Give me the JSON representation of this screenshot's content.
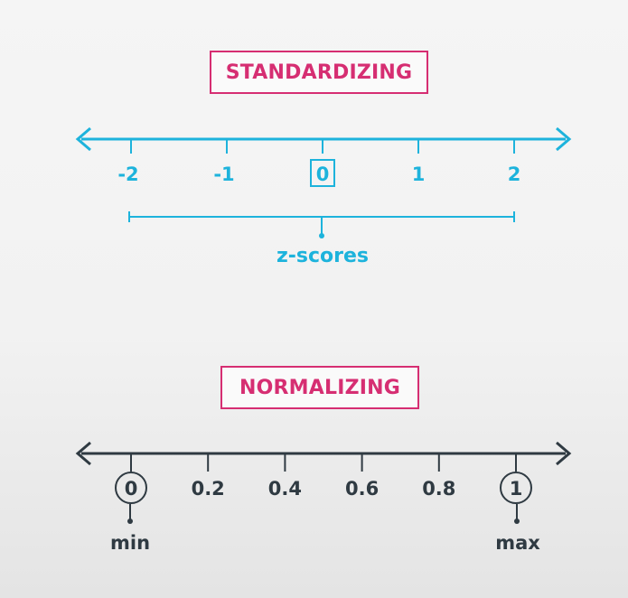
{
  "standardizing": {
    "title": "STANDARDIZING",
    "color": "#1db3dc",
    "ticks": [
      "-2",
      "-1",
      "0",
      "1",
      "2"
    ],
    "highlighted_tick": "0",
    "range_label": "z-scores"
  },
  "normalizing": {
    "title": "NORMALIZING",
    "color": "#2f3a42",
    "ticks": [
      "0",
      "0.2",
      "0.4",
      "0.6",
      "0.8",
      "1"
    ],
    "circled_ticks": [
      "0",
      "1"
    ],
    "min_label": "min",
    "max_label": "max"
  }
}
